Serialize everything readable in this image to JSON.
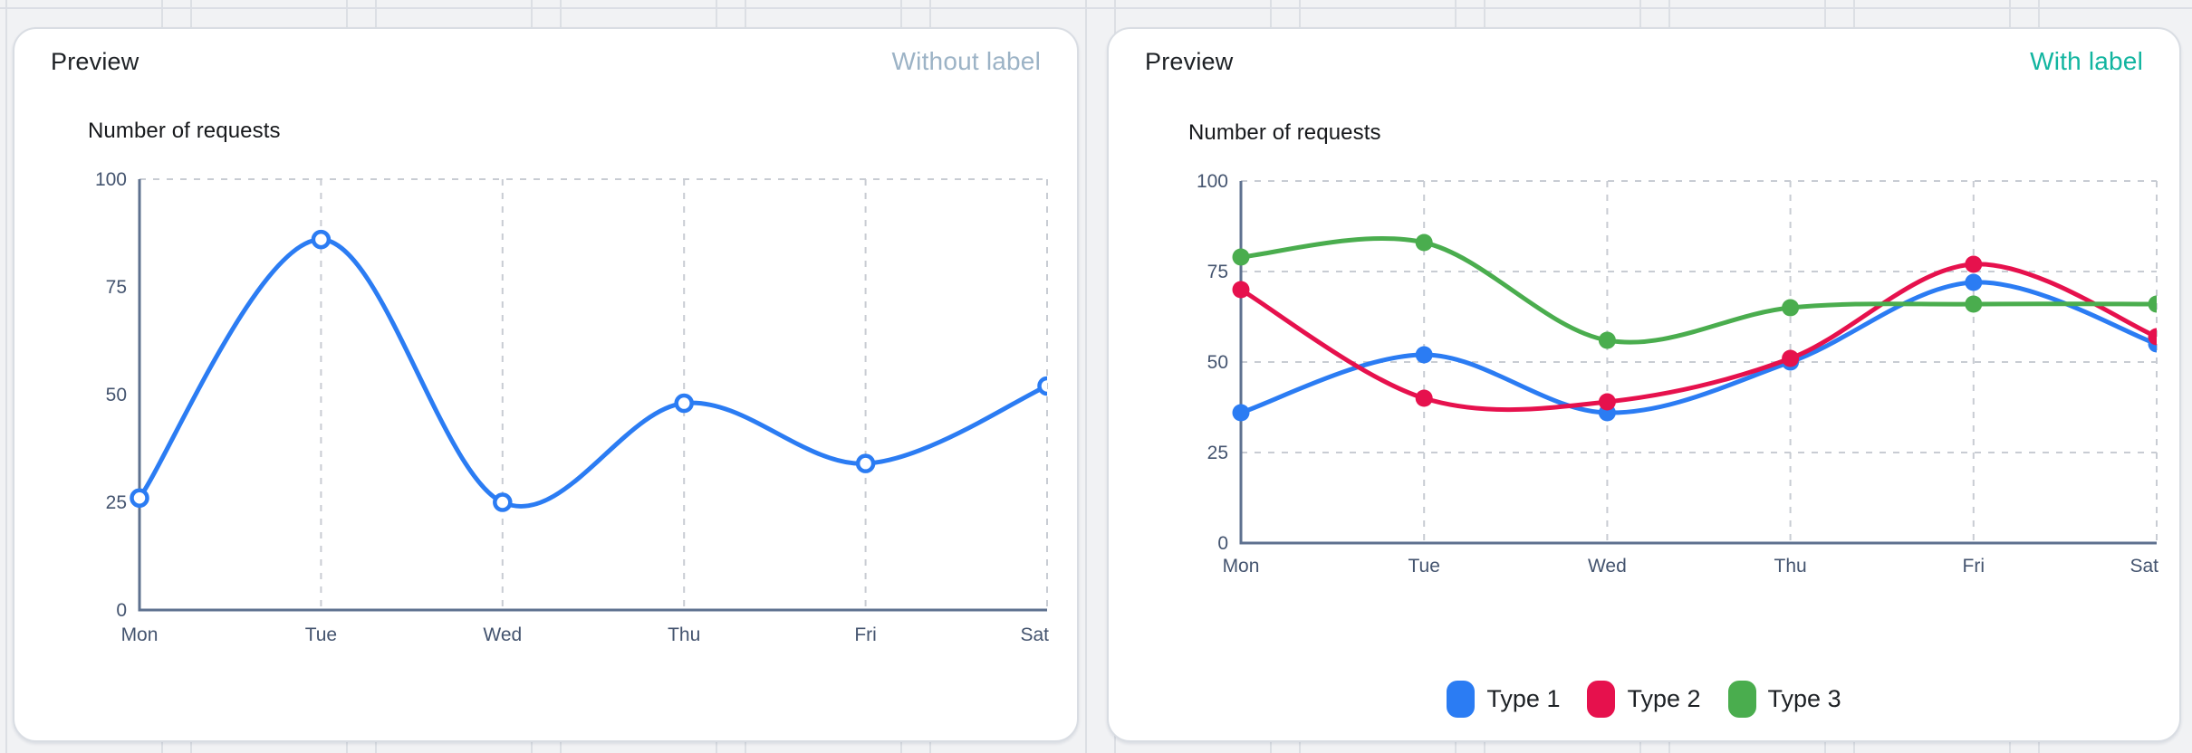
{
  "cards": [
    {
      "title": "Preview",
      "badge": {
        "label": "Without label",
        "color": "#9CB3C6"
      }
    },
    {
      "title": "Preview",
      "badge": {
        "label": "With label",
        "color": "#12B5A0"
      }
    }
  ],
  "chart_data": [
    {
      "type": "line",
      "title": "Number of requests",
      "xlabel": "",
      "ylabel": "",
      "categories": [
        "Mon",
        "Tue",
        "Wed",
        "Thu",
        "Fri",
        "Sat"
      ],
      "series": [
        {
          "name": "Type 1",
          "color": "#2B7CF3",
          "marker": "open",
          "values": [
            26,
            86,
            25,
            48,
            34,
            52
          ]
        }
      ],
      "ylim": [
        0,
        100
      ],
      "yticks": [
        0,
        25,
        50,
        75,
        100
      ],
      "grid": {
        "vertical_on_categories": true,
        "horizontal_at": [
          100
        ]
      },
      "legend": null
    },
    {
      "type": "line",
      "title": "Number of requests",
      "xlabel": "",
      "ylabel": "",
      "categories": [
        "Mon",
        "Tue",
        "Wed",
        "Thu",
        "Fri",
        "Sat"
      ],
      "series": [
        {
          "name": "Type 1",
          "color": "#2B7CF3",
          "marker": "filled",
          "values": [
            36,
            52,
            36,
            50,
            72,
            55
          ]
        },
        {
          "name": "Type 2",
          "color": "#E6114D",
          "marker": "filled",
          "values": [
            70,
            40,
            39,
            51,
            77,
            57
          ]
        },
        {
          "name": "Type 3",
          "color": "#4AAD4E",
          "marker": "filled",
          "values": [
            79,
            83,
            56,
            65,
            66,
            66
          ]
        }
      ],
      "ylim": [
        0,
        100
      ],
      "yticks": [
        0,
        25,
        50,
        75,
        100
      ],
      "grid": {
        "vertical_on_categories": true,
        "horizontal_at": [
          25,
          50,
          75,
          100
        ]
      },
      "legend": {
        "position": "bottom",
        "items": [
          "Type 1",
          "Type 2",
          "Type 3"
        ]
      }
    }
  ],
  "theme": {
    "axis_color": "#5E718F",
    "tick_label_color": "#44546F",
    "grid_color": "#C8CCD3",
    "title_color": "#17191C",
    "header_color": "#1D2125",
    "legend_text_color": "#1D2125",
    "card_bg": "#FFFFFF",
    "card_border": "#D9DDE3",
    "page_bg": "#F1F2F4",
    "page_grid_line": "#DCDFE4"
  }
}
